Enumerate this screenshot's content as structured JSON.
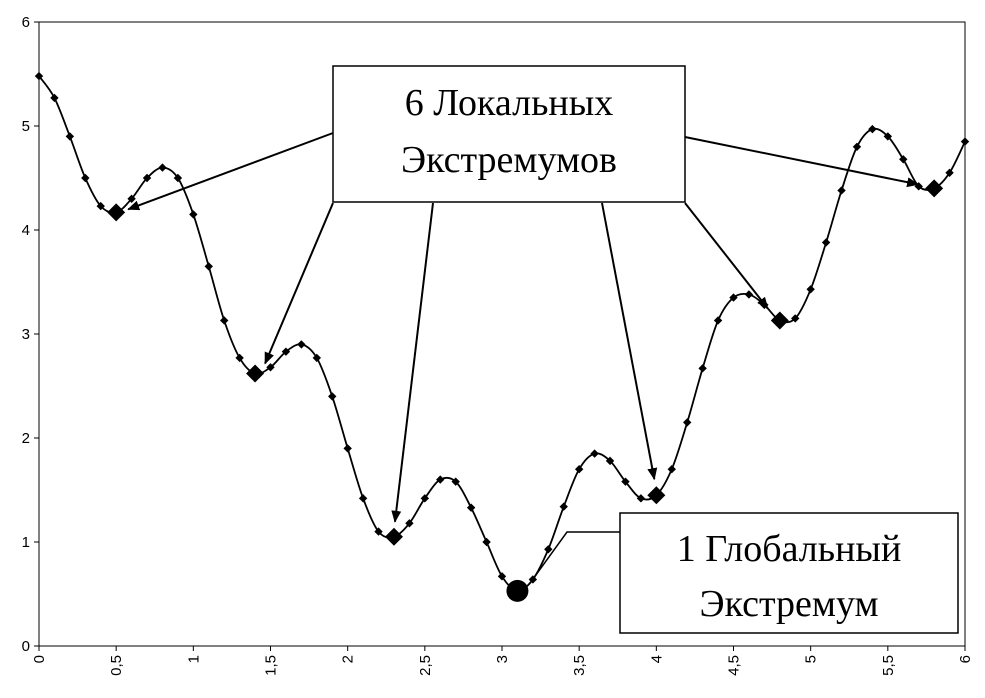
{
  "chart_data": {
    "type": "line",
    "title": "",
    "xlabel": "",
    "ylabel": "",
    "xlim": [
      0,
      6
    ],
    "ylim": [
      0,
      6
    ],
    "x_ticks": [
      "0",
      "0,5",
      "1",
      "1,5",
      "2",
      "2,5",
      "3",
      "3,5",
      "4",
      "4,5",
      "5",
      "5,5",
      "6"
    ],
    "x_tick_values": [
      0,
      0.5,
      1,
      1.5,
      2,
      2.5,
      3,
      3.5,
      4,
      4.5,
      5,
      5.5,
      6
    ],
    "y_ticks": [
      "0",
      "1",
      "2",
      "3",
      "4",
      "5",
      "6"
    ],
    "y_tick_values": [
      0,
      1,
      2,
      3,
      4,
      5,
      6
    ],
    "grid": false,
    "legend": "none",
    "series": [
      {
        "points": [
          [
            0.0,
            5.48
          ],
          [
            0.1,
            5.27
          ],
          [
            0.2,
            4.9
          ],
          [
            0.3,
            4.5
          ],
          [
            0.4,
            4.23
          ],
          [
            0.5,
            4.17
          ],
          [
            0.6,
            4.3
          ],
          [
            0.7,
            4.5
          ],
          [
            0.8,
            4.6
          ],
          [
            0.9,
            4.5
          ],
          [
            1.0,
            4.15
          ],
          [
            1.1,
            3.65
          ],
          [
            1.2,
            3.13
          ],
          [
            1.3,
            2.77
          ],
          [
            1.4,
            2.62
          ],
          [
            1.5,
            2.68
          ],
          [
            1.6,
            2.83
          ],
          [
            1.7,
            2.9
          ],
          [
            1.8,
            2.77
          ],
          [
            1.9,
            2.4
          ],
          [
            2.0,
            1.9
          ],
          [
            2.1,
            1.42
          ],
          [
            2.2,
            1.1
          ],
          [
            2.3,
            1.05
          ],
          [
            2.4,
            1.18
          ],
          [
            2.5,
            1.42
          ],
          [
            2.6,
            1.6
          ],
          [
            2.7,
            1.58
          ],
          [
            2.8,
            1.33
          ],
          [
            2.9,
            1.0
          ],
          [
            3.0,
            0.67
          ],
          [
            3.1,
            0.53
          ],
          [
            3.2,
            0.64
          ],
          [
            3.3,
            0.93
          ],
          [
            3.4,
            1.34
          ],
          [
            3.5,
            1.7
          ],
          [
            3.6,
            1.85
          ],
          [
            3.7,
            1.78
          ],
          [
            3.8,
            1.58
          ],
          [
            3.9,
            1.42
          ],
          [
            4.0,
            1.45
          ],
          [
            4.1,
            1.7
          ],
          [
            4.2,
            2.15
          ],
          [
            4.3,
            2.67
          ],
          [
            4.4,
            3.13
          ],
          [
            4.5,
            3.35
          ],
          [
            4.6,
            3.38
          ],
          [
            4.7,
            3.28
          ],
          [
            4.8,
            3.13
          ],
          [
            4.9,
            3.15
          ],
          [
            5.0,
            3.43
          ],
          [
            5.1,
            3.88
          ],
          [
            5.2,
            4.38
          ],
          [
            5.3,
            4.8
          ],
          [
            5.4,
            4.97
          ],
          [
            5.5,
            4.9
          ],
          [
            5.6,
            4.68
          ],
          [
            5.7,
            4.42
          ],
          [
            5.8,
            4.4
          ],
          [
            5.9,
            4.55
          ],
          [
            6.0,
            4.85
          ]
        ]
      }
    ],
    "local_extrema": [
      {
        "x": 0.5,
        "y": 4.17
      },
      {
        "x": 1.4,
        "y": 2.62
      },
      {
        "x": 2.3,
        "y": 1.05
      },
      {
        "x": 4.0,
        "y": 1.45
      },
      {
        "x": 4.8,
        "y": 3.13
      },
      {
        "x": 5.8,
        "y": 4.4
      }
    ],
    "global_extremum": {
      "x": 3.1,
      "y": 0.53
    },
    "annotations": {
      "local": {
        "line1": "6 Локальных",
        "line2": "Экстремумов"
      },
      "global": {
        "line1": "1 Глобальный",
        "line2": "Экстремум"
      }
    }
  }
}
